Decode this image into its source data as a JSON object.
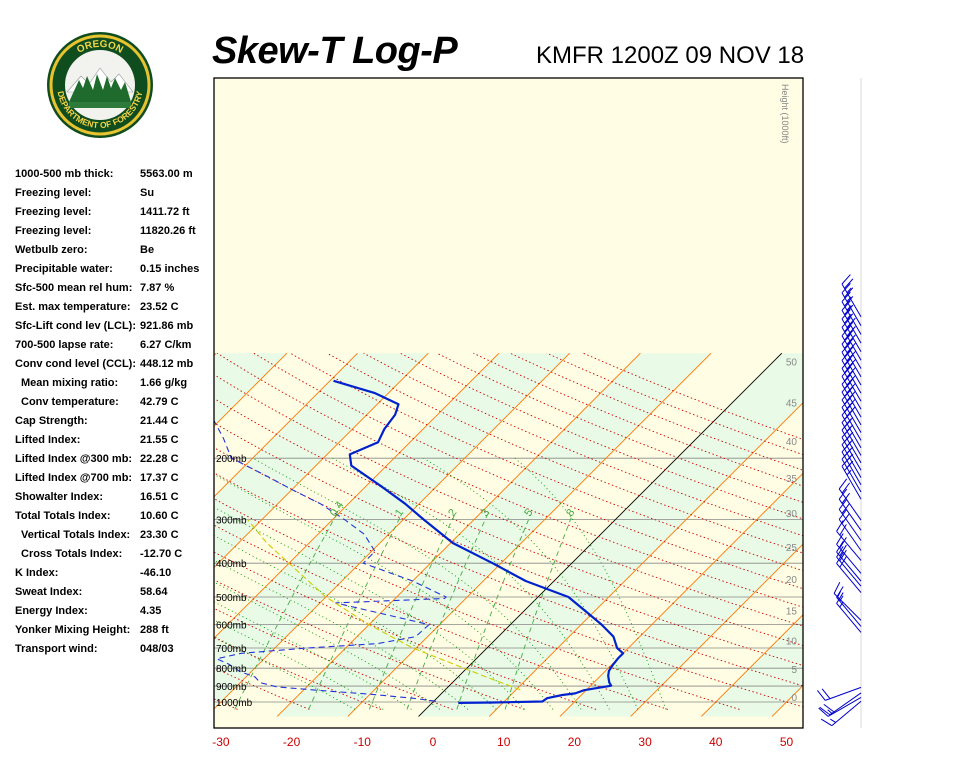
{
  "title": "Skew-T Log-P",
  "station_line": "KMFR 1200Z 09 NOV 18",
  "logo": {
    "top_text": "OREGON",
    "bottom_text": "DEPARTMENT OF FORESTRY"
  },
  "height_axis_label": "Height (1000ft)",
  "indices": [
    {
      "label": "1000-500 mb thick:",
      "value": "5563.00 m",
      "indent": false
    },
    {
      "label": "Freezing level:",
      "value": "Su",
      "indent": false
    },
    {
      "label": "Freezing level:",
      "value": "1411.72 ft",
      "indent": false
    },
    {
      "label": "Freezing level:",
      "value": "11820.26 ft",
      "indent": false
    },
    {
      "label": "Wetbulb zero:",
      "value": "Be",
      "indent": false
    },
    {
      "label": "Precipitable water:",
      "value": "0.15 inches",
      "indent": false
    },
    {
      "label": "Sfc-500 mean rel hum:",
      "value": "7.87 %",
      "indent": false
    },
    {
      "label": "Est. max temperature:",
      "value": "23.52 C",
      "indent": false
    },
    {
      "label": "Sfc-Lift cond lev (LCL):",
      "value": "921.86 mb",
      "indent": false
    },
    {
      "label": "700-500 lapse rate:",
      "value": "6.27 C/km",
      "indent": false
    },
    {
      "label": "Conv cond level (CCL):",
      "value": "448.12 mb",
      "indent": false
    },
    {
      "label": "Mean mixing ratio:",
      "value": "1.66 g/kg",
      "indent": true
    },
    {
      "label": "Conv temperature:",
      "value": "42.79 C",
      "indent": true
    },
    {
      "label": "Cap Strength:",
      "value": "21.44 C",
      "indent": false
    },
    {
      "label": "Lifted Index:",
      "value": "21.55 C",
      "indent": false
    },
    {
      "label": "Lifted Index @300 mb:",
      "value": "22.28 C",
      "indent": false
    },
    {
      "label": "Lifted Index @700 mb:",
      "value": "17.37 C",
      "indent": false
    },
    {
      "label": "Showalter Index:",
      "value": "16.51 C",
      "indent": false
    },
    {
      "label": "Total Totals Index:",
      "value": "10.60 C",
      "indent": false
    },
    {
      "label": "Vertical Totals Index:",
      "value": "23.30 C",
      "indent": true
    },
    {
      "label": "Cross Totals Index:",
      "value": "-12.70 C",
      "indent": true
    },
    {
      "label": "K Index:",
      "value": "-46.10",
      "indent": false
    },
    {
      "label": "Sweat Index:",
      "value": "58.64",
      "indent": false
    },
    {
      "label": "Energy Index:",
      "value": "4.35",
      "indent": false
    },
    {
      "label": "Yonker Mixing Height:",
      "value": "288 ft",
      "indent": false
    },
    {
      "label": "Transport wind:",
      "value": "048/03",
      "indent": false
    }
  ],
  "colors": {
    "temperature": "#0022cc",
    "dewpoint": "#2233dd",
    "isotherm": "#ff7700",
    "dry_adiabat": "#cc0000",
    "moist_adiabat": "#009900",
    "mixing_ratio": "#44aa44",
    "parcel": "#cccc00",
    "band_yellow": "#fffde3",
    "band_green": "#e9fbe6",
    "isobar": "#888888",
    "temp_axis_labels": "#cc0000",
    "height_labels": "#888888",
    "wind_barbs": "#0000cc"
  },
  "chart_data": {
    "type": "line",
    "x_axis": {
      "label": "",
      "unit": "C",
      "ticks": [
        -30,
        -20,
        -10,
        0,
        10,
        20,
        30,
        40,
        50
      ]
    },
    "pressure_levels": [
      {
        "p": 1000,
        "label": "1000mb"
      },
      {
        "p": 900,
        "label": "900mb"
      },
      {
        "p": 800,
        "label": "800mb"
      },
      {
        "p": 700,
        "label": "700mb"
      },
      {
        "p": 600,
        "label": "600mb"
      },
      {
        "p": 500,
        "label": "500mb"
      },
      {
        "p": 400,
        "label": "400mb"
      },
      {
        "p": 300,
        "label": "300mb"
      },
      {
        "p": 200,
        "label": "200mb"
      }
    ],
    "height_ticks_kft": [
      0,
      5,
      10,
      15,
      20,
      25,
      30,
      35,
      40,
      45,
      50
    ],
    "mixing_ratio_labels": [
      "0.4",
      "1",
      "2",
      "3",
      "5",
      "8"
    ],
    "series": [
      {
        "kind": "temperature",
        "points": [
          [
            1006,
            3.7
          ],
          [
            1003,
            8.5
          ],
          [
            997,
            15.4
          ],
          [
            975,
            15.6
          ],
          [
            955,
            17.3
          ],
          [
            945,
            18.9
          ],
          [
            925,
            19.7
          ],
          [
            898,
            22.9
          ],
          [
            880,
            22.2
          ],
          [
            842,
            21.1
          ],
          [
            815,
            20.5
          ],
          [
            785,
            20.2
          ],
          [
            750,
            20.0
          ],
          [
            725,
            20.0
          ],
          [
            700,
            18.4
          ],
          [
            650,
            16.3
          ],
          [
            600,
            12.9
          ],
          [
            550,
            8.8
          ],
          [
            500,
            4.3
          ],
          [
            450,
            -4.0
          ],
          [
            400,
            -11.2
          ],
          [
            350,
            -19.7
          ],
          [
            300,
            -27.1
          ],
          [
            270,
            -32.0
          ],
          [
            240,
            -38.0
          ],
          [
            210,
            -45.0
          ],
          [
            195,
            -46.8
          ],
          [
            180,
            -44.5
          ],
          [
            165,
            -45.5
          ],
          [
            150,
            -46.0
          ],
          [
            140,
            -47.0
          ],
          [
            130,
            -52.0
          ],
          [
            120,
            -59.5
          ]
        ]
      },
      {
        "kind": "dewpoint",
        "points": [
          [
            995,
            0.3
          ],
          [
            975,
            -3.4
          ],
          [
            950,
            -10.0
          ],
          [
            930,
            -16.6
          ],
          [
            905,
            -24.2
          ],
          [
            880,
            -27.2
          ],
          [
            848,
            -28.7
          ],
          [
            818,
            -31.6
          ],
          [
            778,
            -34.3
          ],
          [
            752,
            -36.7
          ],
          [
            725,
            -34.0
          ],
          [
            700,
            -25.4
          ],
          [
            680,
            -16.1
          ],
          [
            650,
            -11.7
          ],
          [
            600,
            -11.5
          ],
          [
            520,
            -27.8
          ],
          [
            505,
            -13.0
          ],
          [
            500,
            -13.0
          ],
          [
            450,
            -20.0
          ],
          [
            400,
            -29.5
          ],
          [
            370,
            -29.5
          ],
          [
            330,
            -33.5
          ],
          [
            300,
            -38.3
          ],
          [
            270,
            -44.0
          ],
          [
            250,
            -49.0
          ],
          [
            225,
            -55.5
          ],
          [
            200,
            -63.0
          ],
          [
            175,
            -67.0
          ],
          [
            155,
            -71.0
          ],
          [
            140,
            -74.0
          ],
          [
            125,
            -78.0
          ],
          [
            110,
            -83.0
          ]
        ]
      },
      {
        "kind": "parcel",
        "points": [
          [
            922,
            10.6
          ],
          [
            850,
            4.2
          ],
          [
            700,
            -10.5
          ],
          [
            600,
            -20.0
          ],
          [
            500,
            -30.0
          ],
          [
            400,
            -40.0
          ],
          [
            350,
            -46.0
          ],
          [
            300,
            -52.0
          ]
        ]
      }
    ],
    "wind_barbs": [
      {
        "height_kft": 0.5,
        "dir": 230,
        "speed_kt": 15
      },
      {
        "height_kft": 1.2,
        "dir": 240,
        "speed_kt": 15
      },
      {
        "height_kft": 2.0,
        "dir": 235,
        "speed_kt": 20
      },
      {
        "height_kft": 3.0,
        "dir": 250,
        "speed_kt": 20
      },
      {
        "height_kft": 12.5,
        "dir": 320,
        "speed_kt": 15
      },
      {
        "height_kft": 13.5,
        "dir": 320,
        "speed_kt": 15
      },
      {
        "height_kft": 14.5,
        "dir": 315,
        "speed_kt": 15
      },
      {
        "height_kft": 19.0,
        "dir": 320,
        "speed_kt": 20
      },
      {
        "height_kft": 20.0,
        "dir": 320,
        "speed_kt": 20
      },
      {
        "height_kft": 20.8,
        "dir": 320,
        "speed_kt": 20
      },
      {
        "height_kft": 22.0,
        "dir": 320,
        "speed_kt": 20
      },
      {
        "height_kft": 24.0,
        "dir": 320,
        "speed_kt": 20
      },
      {
        "height_kft": 25.5,
        "dir": 325,
        "speed_kt": 20
      },
      {
        "height_kft": 27.0,
        "dir": 325,
        "speed_kt": 20
      },
      {
        "height_kft": 28.5,
        "dir": 325,
        "speed_kt": 20
      },
      {
        "height_kft": 30.0,
        "dir": 325,
        "speed_kt": 20
      },
      {
        "height_kft": 33.0,
        "dir": 330,
        "speed_kt": 25
      },
      {
        "height_kft": 34.0,
        "dir": 330,
        "speed_kt": 25
      },
      {
        "height_kft": 35.0,
        "dir": 330,
        "speed_kt": 25
      },
      {
        "height_kft": 36.0,
        "dir": 330,
        "speed_kt": 25
      },
      {
        "height_kft": 37.0,
        "dir": 330,
        "speed_kt": 25
      },
      {
        "height_kft": 38.0,
        "dir": 330,
        "speed_kt": 25
      },
      {
        "height_kft": 39.0,
        "dir": 330,
        "speed_kt": 25
      },
      {
        "height_kft": 40.0,
        "dir": 330,
        "speed_kt": 25
      },
      {
        "height_kft": 41.0,
        "dir": 330,
        "speed_kt": 30
      },
      {
        "height_kft": 42.0,
        "dir": 330,
        "speed_kt": 30
      },
      {
        "height_kft": 43.0,
        "dir": 330,
        "speed_kt": 30
      },
      {
        "height_kft": 44.0,
        "dir": 330,
        "speed_kt": 30
      },
      {
        "height_kft": 45.0,
        "dir": 330,
        "speed_kt": 30
      },
      {
        "height_kft": 46.0,
        "dir": 330,
        "speed_kt": 30
      },
      {
        "height_kft": 47.0,
        "dir": 330,
        "speed_kt": 30
      },
      {
        "height_kft": 48.0,
        "dir": 330,
        "speed_kt": 30
      },
      {
        "height_kft": 49.0,
        "dir": 330,
        "speed_kt": 30
      },
      {
        "height_kft": 50.0,
        "dir": 330,
        "speed_kt": 30
      },
      {
        "height_kft": 51.0,
        "dir": 330,
        "speed_kt": 30
      },
      {
        "height_kft": 52.0,
        "dir": 330,
        "speed_kt": 30
      },
      {
        "height_kft": 53.0,
        "dir": 330,
        "speed_kt": 25
      },
      {
        "height_kft": 54.0,
        "dir": 330,
        "speed_kt": 25
      },
      {
        "height_kft": 55.0,
        "dir": 330,
        "speed_kt": 25
      },
      {
        "height_kft": 56.0,
        "dir": 330,
        "speed_kt": 25
      }
    ]
  }
}
